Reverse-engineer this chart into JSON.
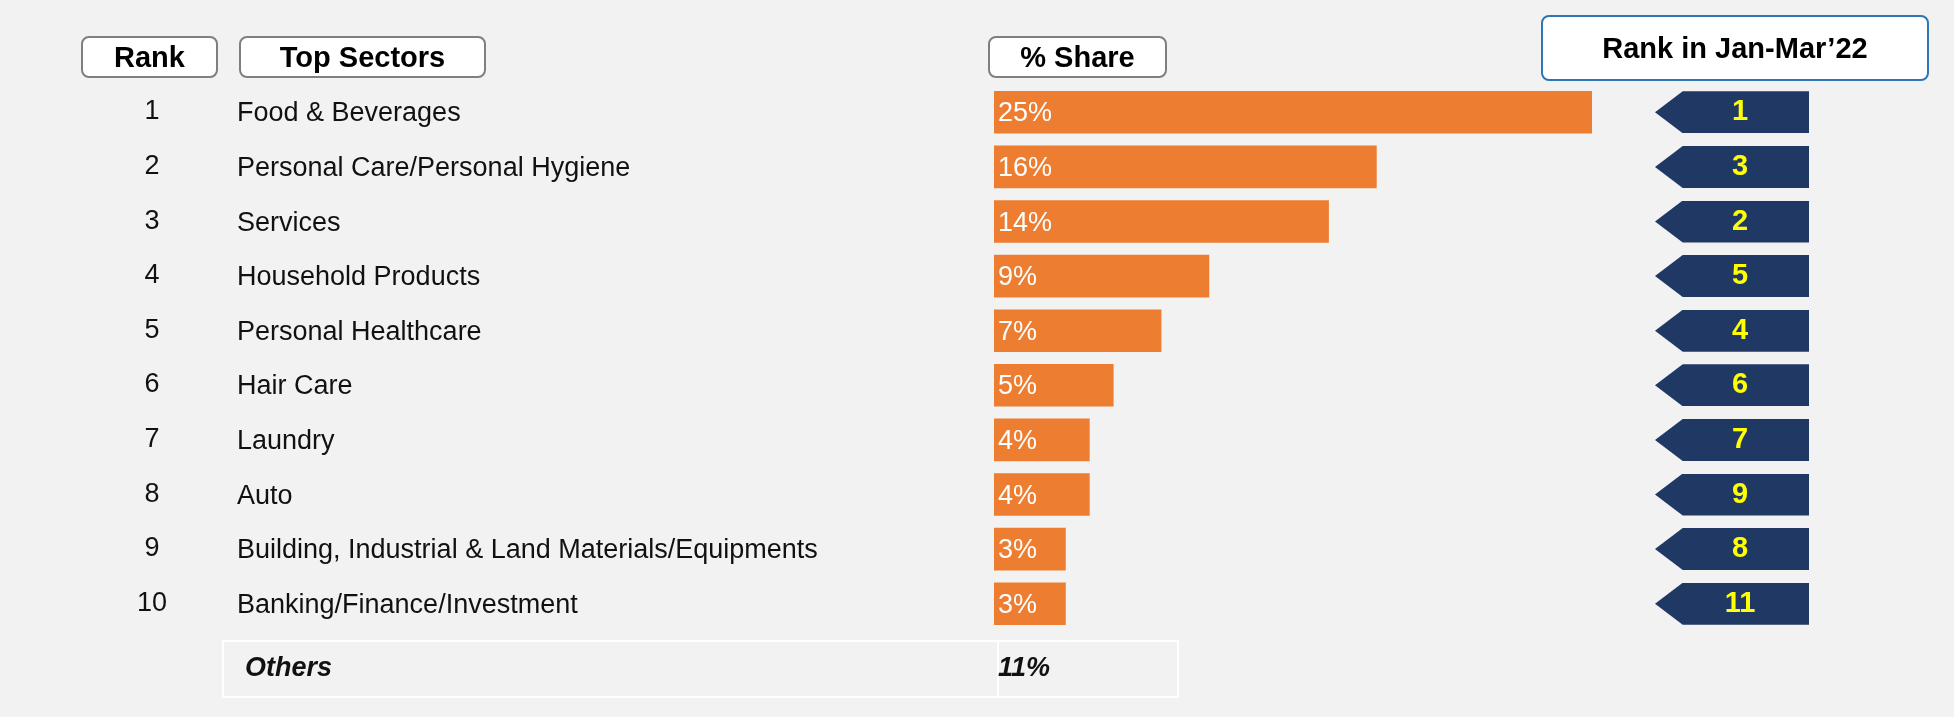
{
  "chart_data": {
    "type": "bar",
    "orientation": "horizontal",
    "color": "#ed7d31",
    "categories": [
      "Food & Beverages",
      "Personal Care/Personal Hygiene",
      "Services",
      "Household Products",
      "Personal Healthcare",
      "Hair Care",
      "Laundry",
      "Auto",
      "Building, Industrial & Land Materials/Equipments",
      "Banking/Finance/Investment"
    ],
    "values": [
      25,
      16,
      14,
      9,
      7,
      5,
      4,
      4,
      3,
      3
    ],
    "value_labels": [
      "25%",
      "16%",
      "14%",
      "9%",
      "7%",
      "5%",
      "4%",
      "4%",
      "3%",
      "3%"
    ],
    "annotations": [
      "Rank",
      "Top Sectors",
      "% Share",
      "Rank in Jan-Mar’22",
      "Others",
      "11%",
      "1",
      "2",
      "3",
      "4",
      "5",
      "6",
      "7",
      "8",
      "9",
      "10",
      "1",
      "3",
      "2",
      "5",
      "4",
      "6",
      "7",
      "9",
      "8",
      "11"
    ]
  }
}
